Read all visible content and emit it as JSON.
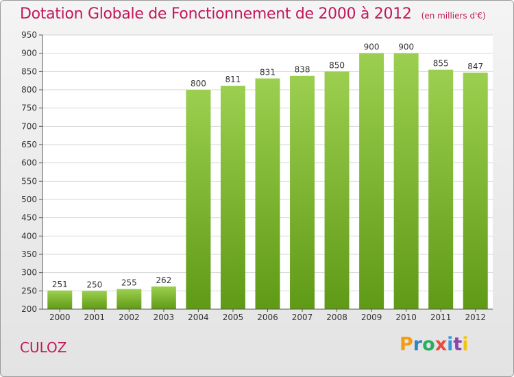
{
  "title": "Dotation Globale de Fonctionnement de 2000 à 2012",
  "subtitle": "(en milliers d'€)",
  "place": "CULOZ",
  "logo": {
    "letters": [
      "P",
      "r",
      "o",
      "x",
      "i",
      "t",
      "i"
    ],
    "colors": [
      "#f39c12",
      "#2e86c1",
      "#27ae60",
      "#e74c3c",
      "#3498db",
      "#8e44ad",
      "#f1c40f"
    ]
  },
  "chart_data": {
    "type": "bar",
    "categories": [
      "2000",
      "2001",
      "2002",
      "2003",
      "2004",
      "2005",
      "2006",
      "2007",
      "2008",
      "2009",
      "2010",
      "2011",
      "2012"
    ],
    "values": [
      251,
      250,
      255,
      262,
      800,
      811,
      831,
      838,
      850,
      900,
      900,
      855,
      847
    ],
    "title": "Dotation Globale de Fonctionnement de 2000 à 2012",
    "subtitle": "(en milliers d'€)",
    "xlabel": "",
    "ylabel": "",
    "ylim": [
      200,
      950
    ],
    "yticks": [
      200,
      250,
      300,
      350,
      400,
      450,
      500,
      550,
      600,
      650,
      700,
      750,
      800,
      850,
      900,
      950
    ],
    "grid": true,
    "bar_color": "#7ab82e"
  }
}
